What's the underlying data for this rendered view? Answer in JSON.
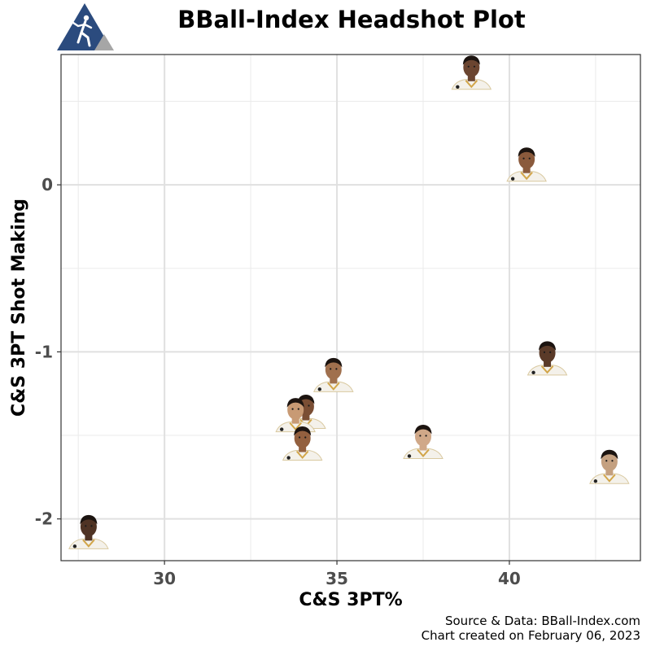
{
  "chart_data": {
    "type": "scatter",
    "title": "BBall-Index Headshot Plot",
    "xlabel": "C&S 3PT%",
    "ylabel": "C&S 3PT Shot Making",
    "xlim": [
      27.0,
      43.8
    ],
    "ylim": [
      -2.25,
      0.78
    ],
    "x_ticks": [
      30,
      35,
      40
    ],
    "x_tick_labels": [
      "30",
      "35",
      "40"
    ],
    "y_ticks": [
      -2,
      -1,
      0
    ],
    "y_tick_labels": [
      "-2",
      "-1",
      "0"
    ],
    "grid": true,
    "legend": "none",
    "marker": "player-headshot",
    "points": [
      {
        "x": 38.9,
        "y": 0.63
      },
      {
        "x": 40.5,
        "y": 0.08
      },
      {
        "x": 41.1,
        "y": -1.08
      },
      {
        "x": 34.9,
        "y": -1.18
      },
      {
        "x": 34.1,
        "y": -1.4
      },
      {
        "x": 33.8,
        "y": -1.42
      },
      {
        "x": 34.0,
        "y": -1.59
      },
      {
        "x": 37.5,
        "y": -1.58
      },
      {
        "x": 42.9,
        "y": -1.73
      },
      {
        "x": 27.8,
        "y": -2.12
      }
    ]
  },
  "caption": {
    "line1": "Source & Data: BBall-Index.com",
    "line2": "Chart created on February 06, 2023"
  },
  "logo": {
    "text": "",
    "primary_color": "#2b4b7e",
    "secondary_color": "#a6a6a6"
  }
}
